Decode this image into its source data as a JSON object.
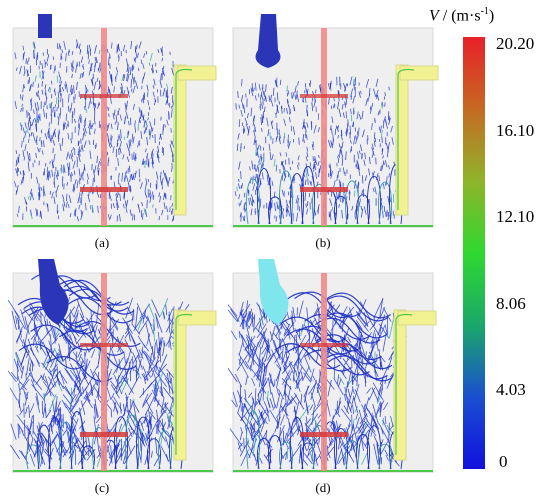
{
  "panels": [
    {
      "id": "a",
      "label": "(a)"
    },
    {
      "id": "b",
      "label": "(b)"
    },
    {
      "id": "c",
      "label": "(c)"
    },
    {
      "id": "d",
      "label": "(d)"
    }
  ],
  "legend": {
    "title_symbol": "V",
    "title_rest": " / (m·s",
    "title_exp": "-1",
    "title_close": ")",
    "ticks": [
      "20.20",
      "16.10",
      "12.10",
      "8.06",
      "4.03",
      "0"
    ],
    "gradient_colors": [
      "#e8202a",
      "#c66a22",
      "#8fb42a",
      "#2fd82f",
      "#1aa86a",
      "#1a4fd0",
      "#1111dd"
    ]
  },
  "colors": {
    "vessel": "#efefef",
    "vessel_edge": "#d8d8d8",
    "shaft": "#f08a8a",
    "impeller": "#d63a3a",
    "tube": "#f2f292",
    "tube_edge": "#d8d890",
    "streak": "#1c2fc4",
    "inlet_a": "#2a35b8",
    "inlet_d": "#7fe6ee",
    "green": "#4cc94c"
  }
}
